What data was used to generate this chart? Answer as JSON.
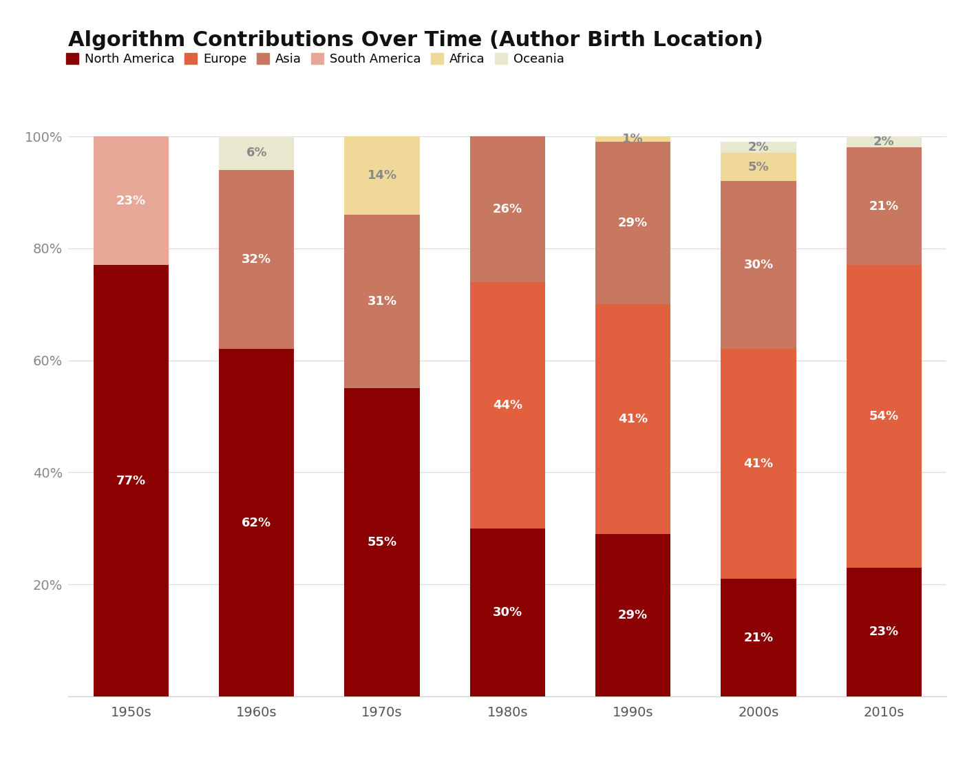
{
  "title": "Algorithm Contributions Over Time (Author Birth Location)",
  "categories": [
    "1950s",
    "1960s",
    "1970s",
    "1980s",
    "1990s",
    "2000s",
    "2010s"
  ],
  "regions": [
    "North America",
    "Europe",
    "Asia",
    "South America",
    "Africa",
    "Oceania"
  ],
  "colors": [
    "#8B0000",
    "#E06040",
    "#C87860",
    "#E8A898",
    "#F0D898",
    "#E8E8D0"
  ],
  "data": {
    "North America": [
      77,
      62,
      55,
      30,
      29,
      21,
      23
    ],
    "Europe": [
      0,
      0,
      0,
      44,
      41,
      41,
      54
    ],
    "Asia": [
      0,
      32,
      31,
      26,
      29,
      30,
      21
    ],
    "South America": [
      23,
      0,
      0,
      0,
      0,
      0,
      0
    ],
    "Africa": [
      0,
      0,
      14,
      0,
      1,
      5,
      0
    ],
    "Oceania": [
      0,
      6,
      0,
      0,
      0,
      2,
      2
    ]
  },
  "data_labels": {
    "North America": [
      "77%",
      "62%",
      "55%",
      "30%",
      "29%",
      "21%",
      "23%"
    ],
    "Europe": [
      "",
      "",
      "",
      "44%",
      "41%",
      "41%",
      "54%"
    ],
    "Asia": [
      "",
      "32%",
      "31%",
      "26%",
      "29%",
      "30%",
      "21%"
    ],
    "South America": [
      "23%",
      "",
      "",
      "",
      "",
      "",
      ""
    ],
    "Africa": [
      "",
      "",
      "14%",
      "",
      "1%",
      "5%",
      ""
    ],
    "Oceania": [
      "",
      "6%",
      "",
      "",
      "",
      "2%",
      "2%"
    ]
  },
  "ylim": [
    0,
    100
  ],
  "yticks": [
    0,
    20,
    40,
    60,
    80,
    100
  ],
  "ytick_labels": [
    "",
    "20%",
    "40%",
    "60%",
    "80%",
    "100%"
  ],
  "background_color": "#FFFFFF",
  "grid_color": "#DDDDDD",
  "label_fontcolor": {
    "North America": "#FFFFFF",
    "Europe": "#FFFFFF",
    "Asia": "#FFFFFF",
    "South America": "#FFFFFF",
    "Africa": "#888888",
    "Oceania": "#888888"
  },
  "title_fontsize": 22,
  "tick_fontsize": 14,
  "legend_fontsize": 13,
  "label_fontsize": 13,
  "bar_width": 0.6
}
